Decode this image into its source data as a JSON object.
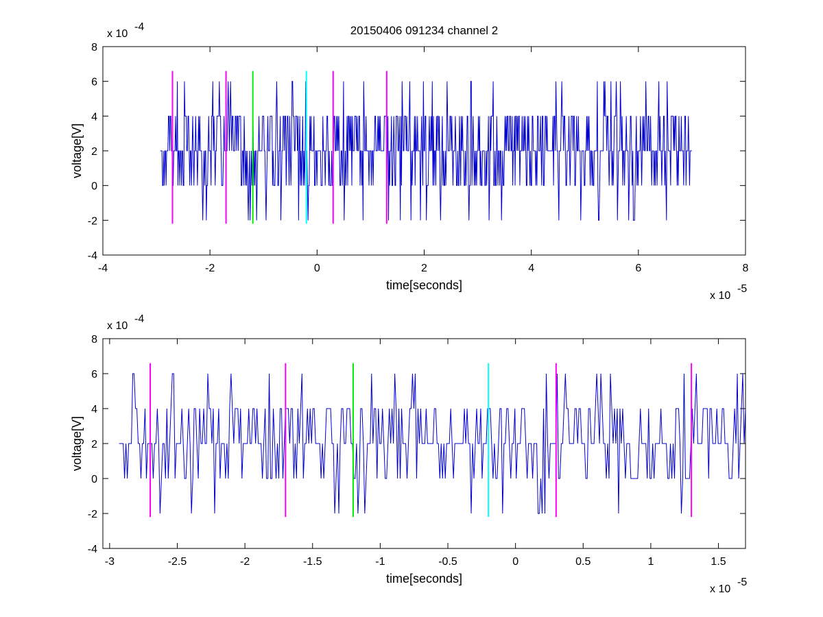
{
  "colors": {
    "signal": "#0000cc",
    "marker_magenta": "#ff00ff",
    "marker_green": "#00ee00",
    "marker_cyan": "#00ffff",
    "axes": "#000000",
    "background": "#ffffff"
  },
  "chart_data": [
    {
      "type": "line",
      "title": "20150406 091234 channel 2",
      "xlabel": "time[seconds]",
      "ylabel": "voltage[V]",
      "x_multiplier_label": "x 10",
      "x_multiplier_exp": "-5",
      "y_multiplier_label": "x 10",
      "y_multiplier_exp": "-4",
      "xlim": [
        -4,
        8
      ],
      "ylim": [
        -4,
        8
      ],
      "xticks": [
        -4,
        -2,
        0,
        2,
        4,
        6,
        8
      ],
      "xtick_labels": [
        "-4",
        "-2",
        "0",
        "2",
        "4",
        "6",
        "8"
      ],
      "yticks": [
        -4,
        -2,
        0,
        2,
        4,
        6,
        8
      ],
      "ytick_labels": [
        "-4",
        "-2",
        "0",
        "2",
        "4",
        "6",
        "8"
      ],
      "grid": false,
      "series": [
        {
          "x_range": [
            -2.93,
            7.0
          ],
          "levels": [
            -2,
            0,
            2,
            4,
            6
          ],
          "baseline": 2,
          "seed": 11,
          "samples": 900,
          "values_note_count": 900
        }
      ],
      "markers": [
        {
          "x": -2.7,
          "color": "magenta",
          "y_range": [
            -2.2,
            6.6
          ]
        },
        {
          "x": -1.7,
          "color": "magenta",
          "y_range": [
            -2.2,
            6.6
          ]
        },
        {
          "x": -1.2,
          "color": "green",
          "y_range": [
            -2.2,
            6.6
          ]
        },
        {
          "x": -0.2,
          "color": "cyan",
          "y_range": [
            -2.2,
            6.6
          ]
        },
        {
          "x": 0.3,
          "color": "magenta",
          "y_range": [
            -2.2,
            6.6
          ]
        },
        {
          "x": 1.3,
          "color": "magenta",
          "y_range": [
            -2.2,
            6.6
          ]
        }
      ]
    },
    {
      "type": "line",
      "title": "",
      "xlabel": "time[seconds]",
      "ylabel": "voltage[V]",
      "x_multiplier_label": "x 10",
      "x_multiplier_exp": "-5",
      "y_multiplier_label": "x 10",
      "y_multiplier_exp": "-4",
      "xlim": [
        -3.05,
        1.7
      ],
      "ylim": [
        -4,
        8
      ],
      "xticks": [
        -3,
        -2.5,
        -2,
        -1.5,
        -1,
        -0.5,
        0,
        0.5,
        1,
        1.5
      ],
      "xtick_labels": [
        "-3",
        "-2.5",
        "-2",
        "-1.5",
        "-1",
        "-0.5",
        "0",
        "0.5",
        "1",
        "1.5"
      ],
      "yticks": [
        -4,
        -2,
        0,
        2,
        4,
        6,
        8
      ],
      "ytick_labels": [
        "-4",
        "-2",
        "0",
        "2",
        "4",
        "6",
        "8"
      ],
      "grid": false,
      "series": [
        {
          "x_range": [
            -2.93,
            1.7
          ],
          "levels": [
            -2,
            0,
            2,
            4,
            6
          ],
          "baseline": 2,
          "seed": 29,
          "samples": 460
        }
      ],
      "markers": [
        {
          "x": -2.7,
          "color": "magenta",
          "y_range": [
            -2.2,
            6.6
          ]
        },
        {
          "x": -1.7,
          "color": "magenta",
          "y_range": [
            -2.2,
            6.6
          ]
        },
        {
          "x": -1.2,
          "color": "green",
          "y_range": [
            -2.2,
            6.6
          ]
        },
        {
          "x": -0.2,
          "color": "cyan",
          "y_range": [
            -2.2,
            6.6
          ]
        },
        {
          "x": 0.3,
          "color": "magenta",
          "y_range": [
            -2.2,
            6.6
          ]
        },
        {
          "x": 1.3,
          "color": "magenta",
          "y_range": [
            -2.2,
            6.6
          ]
        }
      ]
    }
  ]
}
